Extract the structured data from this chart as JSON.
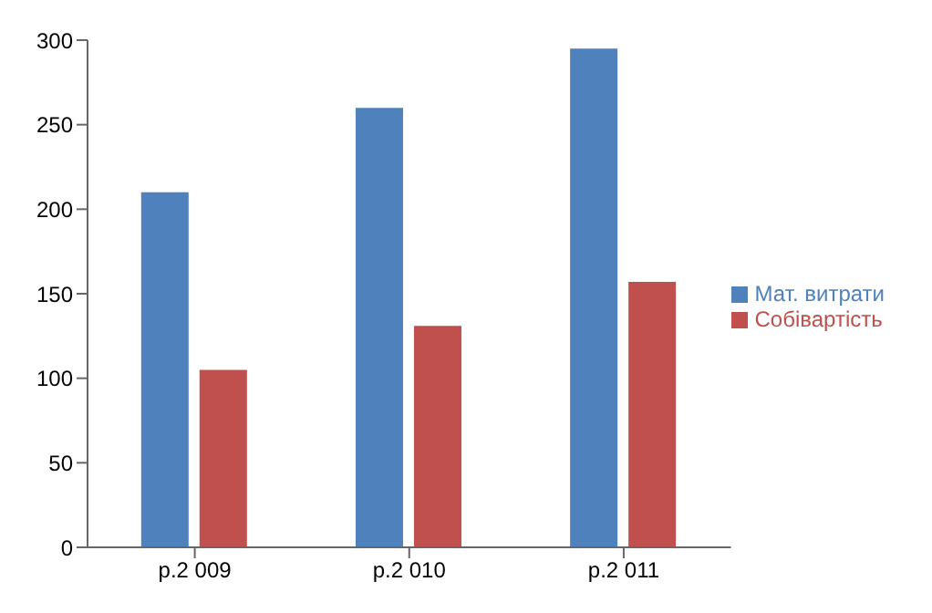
{
  "chart_data": {
    "type": "bar",
    "categories": [
      "р.2 009",
      "р.2 010",
      "р.2 011"
    ],
    "series": [
      {
        "name": "Мат. витрати",
        "color": "#4f81bd",
        "values": [
          210,
          260,
          295
        ]
      },
      {
        "name": "Собівартість",
        "color": "#c0504d",
        "values": [
          105,
          131,
          157
        ]
      }
    ],
    "ylim": [
      0,
      300
    ],
    "yticks": [
      0,
      50,
      100,
      150,
      200,
      250,
      300
    ],
    "grid": false,
    "legend": "right"
  }
}
